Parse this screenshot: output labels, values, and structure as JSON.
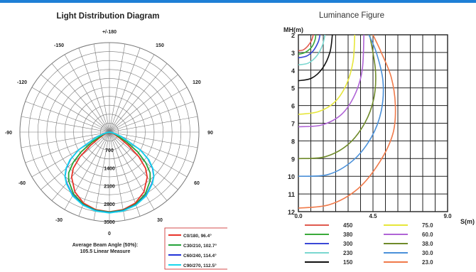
{
  "chart_data": [
    {
      "type": "polar-line",
      "title": "Light Distribution Diagram",
      "angle_labels": [
        {
          "deg": 0,
          "label": "0"
        },
        {
          "deg": 30,
          "label": "30"
        },
        {
          "deg": 60,
          "label": "60"
        },
        {
          "deg": 90,
          "label": "90"
        },
        {
          "deg": 120,
          "label": "120"
        },
        {
          "deg": 150,
          "label": "150"
        },
        {
          "deg": 180,
          "label": "+/-180"
        },
        {
          "deg": -150,
          "label": "-150"
        },
        {
          "deg": -120,
          "label": "-120"
        },
        {
          "deg": -90,
          "label": "-90"
        },
        {
          "deg": -60,
          "label": "-60"
        },
        {
          "deg": -30,
          "label": "-30"
        }
      ],
      "radial_ticks": [
        700,
        1400,
        2100,
        2800,
        3500
      ],
      "r_max": 3500,
      "footer_lines": [
        "Average Beam Angle (50%):",
        "105.5 Linear Measure"
      ],
      "series": [
        {
          "name": "C0/180, 96.4°",
          "color": "#e8342a",
          "points": [
            [
              0,
              3120
            ],
            [
              10,
              3080
            ],
            [
              20,
              2960
            ],
            [
              30,
              2700
            ],
            [
              40,
              2300
            ],
            [
              45,
              2000
            ],
            [
              50,
              1500
            ],
            [
              55,
              900
            ],
            [
              60,
              450
            ],
            [
              70,
              150
            ],
            [
              80,
              40
            ],
            [
              90,
              0
            ]
          ]
        },
        {
          "name": "C30/210, 102.7°",
          "color": "#25a33a",
          "points": [
            [
              0,
              3130
            ],
            [
              10,
              3100
            ],
            [
              20,
              3000
            ],
            [
              30,
              2800
            ],
            [
              40,
              2480
            ],
            [
              45,
              2250
            ],
            [
              50,
              1850
            ],
            [
              55,
              1350
            ],
            [
              60,
              800
            ],
            [
              70,
              250
            ],
            [
              80,
              60
            ],
            [
              90,
              0
            ]
          ]
        },
        {
          "name": "C60/240, 114.4°",
          "color": "#2233d8",
          "points": [
            [
              0,
              3150
            ],
            [
              10,
              3120
            ],
            [
              20,
              3030
            ],
            [
              30,
              2860
            ],
            [
              40,
              2600
            ],
            [
              45,
              2450
            ],
            [
              50,
              2200
            ],
            [
              55,
              1850
            ],
            [
              60,
              1400
            ],
            [
              70,
              500
            ],
            [
              80,
              100
            ],
            [
              90,
              0
            ]
          ]
        },
        {
          "name": "C90/270, 112.5°",
          "color": "#19d7ec",
          "points": [
            [
              0,
              3160
            ],
            [
              10,
              3130
            ],
            [
              20,
              3040
            ],
            [
              30,
              2880
            ],
            [
              40,
              2620
            ],
            [
              45,
              2460
            ],
            [
              50,
              2220
            ],
            [
              55,
              1880
            ],
            [
              60,
              1380
            ],
            [
              70,
              480
            ],
            [
              80,
              100
            ],
            [
              90,
              0
            ]
          ]
        }
      ]
    },
    {
      "type": "line",
      "title": "Luminance Figure",
      "ylabel": "MH(m)",
      "xlabel": "S(m)",
      "y_ticks": [
        "2",
        "3",
        "4",
        "5",
        "6",
        "7",
        "8",
        "9",
        "10",
        "11",
        "12"
      ],
      "x_ticks": [
        "0.0",
        "4.5",
        "9.0"
      ],
      "ylim": [
        2,
        12
      ],
      "xlim": [
        0,
        9
      ],
      "legend": [
        {
          "label": "450",
          "color": "#e05a4e"
        },
        {
          "label": "380",
          "color": "#3aaa3a"
        },
        {
          "label": "300",
          "color": "#3a48d6"
        },
        {
          "label": "230",
          "color": "#7ad7d0"
        },
        {
          "label": "150",
          "color": "#111111"
        },
        {
          "label": "75.0",
          "color": "#e6e63a"
        },
        {
          "label": "60.0",
          "color": "#b064d6"
        },
        {
          "label": "38.0",
          "color": "#6f8a2a"
        },
        {
          "label": "30.0",
          "color": "#4a90d9"
        },
        {
          "label": "23.0",
          "color": "#f07a4a"
        }
      ],
      "curves": [
        {
          "value": "450",
          "color": "#e05a4e",
          "pts": [
            [
              0,
              2.9
            ],
            [
              0.3,
              2.85
            ],
            [
              0.6,
              2.6
            ],
            [
              0.8,
              2.3
            ],
            [
              0.9,
              2.0
            ]
          ]
        },
        {
          "value": "380",
          "color": "#3aaa3a",
          "pts": [
            [
              0,
              3.1
            ],
            [
              0.4,
              3.0
            ],
            [
              0.8,
              2.7
            ],
            [
              1.0,
              2.3
            ],
            [
              1.05,
              2.0
            ]
          ]
        },
        {
          "value": "300",
          "color": "#3a48d6",
          "pts": [
            [
              0,
              3.3
            ],
            [
              0.5,
              3.2
            ],
            [
              0.9,
              2.9
            ],
            [
              1.2,
              2.4
            ],
            [
              1.3,
              2.0
            ]
          ]
        },
        {
          "value": "230",
          "color": "#7ad7d0",
          "pts": [
            [
              0,
              3.7
            ],
            [
              0.6,
              3.6
            ],
            [
              1.1,
              3.2
            ],
            [
              1.45,
              2.6
            ],
            [
              1.6,
              2.0
            ]
          ]
        },
        {
          "value": "150",
          "color": "#111111",
          "pts": [
            [
              0,
              4.6
            ],
            [
              0.8,
              4.45
            ],
            [
              1.45,
              3.9
            ],
            [
              1.9,
              3.0
            ],
            [
              2.05,
              2.0
            ]
          ]
        },
        {
          "value": "75.0",
          "color": "#e6e63a",
          "pts": [
            [
              0,
              6.5
            ],
            [
              1.2,
              6.35
            ],
            [
              2.2,
              5.8
            ],
            [
              2.9,
              4.8
            ],
            [
              3.3,
              3.5
            ],
            [
              3.4,
              2.0
            ]
          ]
        },
        {
          "value": "60.0",
          "color": "#b064d6",
          "pts": [
            [
              0,
              7.2
            ],
            [
              1.4,
              7.1
            ],
            [
              2.6,
              6.5
            ],
            [
              3.4,
              5.4
            ],
            [
              3.85,
              4.0
            ],
            [
              3.95,
              2.0
            ]
          ]
        },
        {
          "value": "38.0",
          "color": "#6f8a2a",
          "pts": [
            [
              0,
              9.0
            ],
            [
              1.6,
              8.9
            ],
            [
              3.0,
              8.2
            ],
            [
              4.0,
              7.0
            ],
            [
              4.55,
              5.6
            ],
            [
              4.65,
              4.0
            ],
            [
              4.3,
              2.0
            ]
          ]
        },
        {
          "value": "30.0",
          "color": "#4a90d9",
          "pts": [
            [
              0,
              10.0
            ],
            [
              1.8,
              9.9
            ],
            [
              3.3,
              9.1
            ],
            [
              4.4,
              7.8
            ],
            [
              5.0,
              6.3
            ],
            [
              5.1,
              4.6
            ],
            [
              4.7,
              3.0
            ],
            [
              4.25,
              2.0
            ]
          ]
        },
        {
          "value": "23.0",
          "color": "#f07a4a",
          "pts": [
            [
              0,
              11.8
            ],
            [
              1.9,
              11.6
            ],
            [
              3.6,
              10.7
            ],
            [
              4.9,
              9.2
            ],
            [
              5.7,
              7.6
            ],
            [
              5.85,
              6.0
            ],
            [
              5.6,
              4.4
            ],
            [
              5.0,
              3.0
            ],
            [
              4.5,
              2.0
            ]
          ]
        }
      ]
    }
  ]
}
